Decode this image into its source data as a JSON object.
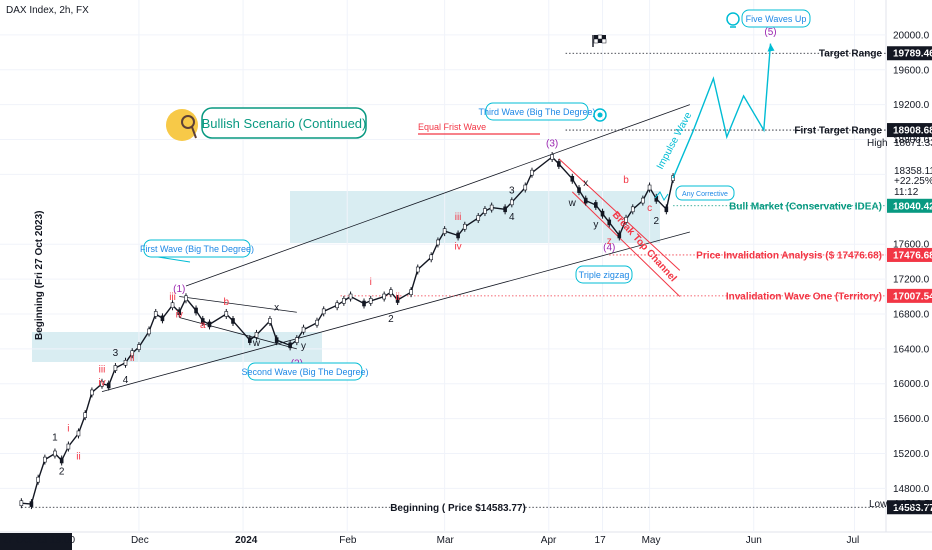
{
  "header": {
    "title": "DAX Index, 2h, FX"
  },
  "colors": {
    "accent": "#00bcd4",
    "red": "#f23645",
    "green": "#089981",
    "black": "#131722",
    "purple": "#9c27b0",
    "box": "#cfe9ef"
  },
  "chart_data": {
    "type": "line",
    "title": "DAX Index, 2h, FX",
    "ylim": [
      14300,
      20400
    ],
    "y_ticks": [
      "20000.0",
      "19600.0",
      "19200.0",
      "18800.0",
      "18400.0",
      "17600.0",
      "17200.0",
      "16800.0",
      "16400.0",
      "16000.0",
      "15600.0",
      "15200.0",
      "14800.0"
    ],
    "x_ticks": [
      "27 Oct '23  19:00",
      "Dec",
      "2024",
      "Feb",
      "Mar",
      "Apr",
      "17",
      "May",
      "Jun",
      "Jul"
    ],
    "series": [
      {
        "x": [
          "2023-10-27",
          "2023-10-30",
          "2023-11-01",
          "2023-11-03",
          "2023-11-06",
          "2023-11-08",
          "2023-11-10",
          "2023-11-13",
          "2023-11-15",
          "2023-11-17",
          "2023-11-20",
          "2023-11-22",
          "2023-11-24",
          "2023-11-27",
          "2023-11-29",
          "2023-12-01",
          "2023-12-04",
          "2023-12-06",
          "2023-12-08",
          "2023-12-11",
          "2023-12-13",
          "2023-12-15",
          "2023-12-18",
          "2023-12-20",
          "2023-12-22",
          "2023-12-27",
          "2023-12-29",
          "2024-01-03",
          "2024-01-05",
          "2024-01-09",
          "2024-01-11",
          "2024-01-15",
          "2024-01-17",
          "2024-01-19",
          "2024-01-23",
          "2024-01-25",
          "2024-01-29",
          "2024-01-31",
          "2024-02-02",
          "2024-02-06",
          "2024-02-08",
          "2024-02-12",
          "2024-02-14",
          "2024-02-16",
          "2024-02-20",
          "2024-02-22",
          "2024-02-26",
          "2024-02-28",
          "2024-03-01",
          "2024-03-05",
          "2024-03-07",
          "2024-03-11",
          "2024-03-13",
          "2024-03-15",
          "2024-03-19",
          "2024-03-21",
          "2024-03-25",
          "2024-03-27",
          "2024-04-02",
          "2024-04-04",
          "2024-04-08",
          "2024-04-10",
          "2024-04-12",
          "2024-04-15",
          "2024-04-17",
          "2024-04-19",
          "2024-04-22",
          "2024-04-24",
          "2024-04-26",
          "2024-04-29",
          "2024-05-01",
          "2024-05-03",
          "2024-05-06",
          "2024-05-08"
        ],
        "y": [
          14630,
          14620,
          14900,
          15130,
          15200,
          15120,
          15280,
          15430,
          15640,
          15900,
          16000,
          15980,
          16180,
          16240,
          16350,
          16420,
          16600,
          16800,
          16750,
          16900,
          16820,
          16980,
          16840,
          16720,
          16680,
          16800,
          16720,
          16500,
          16560,
          16720,
          16500,
          16440,
          16500,
          16620,
          16700,
          16830,
          16900,
          16950,
          17000,
          16920,
          16950,
          17000,
          17050,
          16960,
          17050,
          17310,
          17450,
          17620,
          17750,
          17700,
          17800,
          17900,
          17980,
          18020,
          18000,
          18080,
          18250,
          18420,
          18600,
          18520,
          18350,
          18220,
          18100,
          18050,
          17950,
          17850,
          17700,
          17880,
          18000,
          18100,
          18250,
          18120,
          18000,
          18358.11
        ]
      }
    ],
    "projection": {
      "x": [
        "2024-05-08",
        "2024-05-14",
        "2024-05-20",
        "2024-05-24",
        "2024-05-29",
        "2024-06-04",
        "2024-06-06"
      ],
      "y": [
        18358.11,
        18900,
        19500,
        18830,
        19300,
        18908.68,
        19900
      ]
    },
    "levels": [
      {
        "label": "Target Range",
        "value": "19789.46",
        "y": 19789.46,
        "color": "#131722"
      },
      {
        "label": "First Target Range",
        "value": "18908.68",
        "y": 18908.68,
        "color": "#131722"
      },
      {
        "label": "Bull Market (Conservative IDEA)",
        "value": "18040.42",
        "y": 18040.42,
        "color": "#089981"
      },
      {
        "label": "Price Invalidation Analysis ($ 17476.68)",
        "value": "17476.68",
        "y": 17476.68,
        "color": "#f23645"
      },
      {
        "label": "Invalidation Wave One (Territory)",
        "value": "17007.54",
        "y": 17007.54,
        "color": "#f23645"
      },
      {
        "label": "Beginning ( Price $14583.77)",
        "value": "14583.77",
        "y": 14583.77,
        "color": "#131722"
      }
    ],
    "price_badges": {
      "high_label": "High",
      "high_value": "18671.33",
      "low_label": "Low",
      "low_value": "14583.77",
      "current": "18358.11",
      "change": "+22.25%",
      "countdown": "11:12"
    },
    "annotations": {
      "bullish_scenario": "Bullish Scenario (Continued)",
      "first_wave": "First Wave (Big The Degree)",
      "second_wave": "Second Wave (Big The Degree)",
      "third_wave": "Third Wave (Big The Degree)",
      "five_waves_up": "Five Waves Up",
      "any_corrective": "Any Corrective",
      "triple_zigzag": "Triple zigzag",
      "equal_first_wave": "Equal Frist Wave",
      "impulse_wave": "Impulse Wave",
      "break_top_channel": "Break Top Channel",
      "vertical_label": "Beginning (Fri 27 Oct 2023)"
    },
    "wave_labels": [
      {
        "t": "(1)",
        "x": "2023-12-13",
        "y": 17050,
        "c": "#9c27b0"
      },
      {
        "t": "(2)",
        "x": "2024-01-17",
        "y": 16200,
        "c": "#9c27b0"
      },
      {
        "t": "(3)",
        "x": "2024-04-02",
        "y": 18720,
        "c": "#9c27b0"
      },
      {
        "t": "(4)",
        "x": "2024-04-19",
        "y": 17530,
        "c": "#9c27b0"
      },
      {
        "t": "(5)",
        "x": "2024-06-06",
        "y": 20000,
        "c": "#9c27b0"
      },
      {
        "t": "1",
        "x": "2023-11-06",
        "y": 15350,
        "c": "#131722"
      },
      {
        "t": "2",
        "x": "2023-11-08",
        "y": 14960,
        "c": "#131722"
      },
      {
        "t": "3",
        "x": "2023-11-24",
        "y": 16320,
        "c": "#131722"
      },
      {
        "t": "4",
        "x": "2023-11-27",
        "y": 16010,
        "c": "#131722"
      },
      {
        "t": "i",
        "x": "2023-11-10",
        "y": 15450,
        "c": "#f23645"
      },
      {
        "t": "ii",
        "x": "2023-11-13",
        "y": 15130,
        "c": "#f23645"
      },
      {
        "t": "iii",
        "x": "2023-11-20",
        "y": 16130,
        "c": "#f23645"
      },
      {
        "t": "iv",
        "x": "2023-11-20",
        "y": 15980,
        "c": "#f23645"
      },
      {
        "t": "ii",
        "x": "2023-11-29",
        "y": 16260,
        "c": "#f23645"
      },
      {
        "t": "iii",
        "x": "2023-12-11",
        "y": 16960,
        "c": "#f23645"
      },
      {
        "t": "iv",
        "x": "2023-12-13",
        "y": 16760,
        "c": "#f23645"
      },
      {
        "t": "a",
        "x": "2023-12-20",
        "y": 16640,
        "c": "#f23645"
      },
      {
        "t": "b",
        "x": "2023-12-27",
        "y": 16900,
        "c": "#f23645"
      },
      {
        "t": "w",
        "x": "2024-01-05",
        "y": 16430,
        "c": "#131722"
      },
      {
        "t": "x",
        "x": "2024-01-11",
        "y": 16840,
        "c": "#131722"
      },
      {
        "t": "y",
        "x": "2024-01-19",
        "y": 16400,
        "c": "#131722"
      },
      {
        "t": "2",
        "x": "2024-02-14",
        "y": 16710,
        "c": "#131722"
      },
      {
        "t": "i",
        "x": "2024-02-08",
        "y": 17130,
        "c": "#f23645"
      },
      {
        "t": "ii",
        "x": "2024-02-16",
        "y": 16960,
        "c": "#f23645"
      },
      {
        "t": "iii",
        "x": "2024-03-05",
        "y": 17880,
        "c": "#f23645"
      },
      {
        "t": "iv",
        "x": "2024-03-05",
        "y": 17540,
        "c": "#f23645"
      },
      {
        "t": "3",
        "x": "2024-03-21",
        "y": 18180,
        "c": "#131722"
      },
      {
        "t": "4",
        "x": "2024-03-21",
        "y": 17880,
        "c": "#131722"
      },
      {
        "t": "w",
        "x": "2024-04-08",
        "y": 18040,
        "c": "#131722"
      },
      {
        "t": "x",
        "x": "2024-04-12",
        "y": 18270,
        "c": "#131722"
      },
      {
        "t": "y",
        "x": "2024-04-15",
        "y": 17790,
        "c": "#131722"
      },
      {
        "t": "z",
        "x": "2024-04-19",
        "y": 17600,
        "c": "#f23645"
      },
      {
        "t": "b",
        "x": "2024-04-24",
        "y": 18300,
        "c": "#f23645"
      },
      {
        "t": "c",
        "x": "2024-05-01",
        "y": 17980,
        "c": "#f23645"
      },
      {
        "t": "2",
        "x": "2024-05-03",
        "y": 17830,
        "c": "#131722"
      }
    ]
  }
}
